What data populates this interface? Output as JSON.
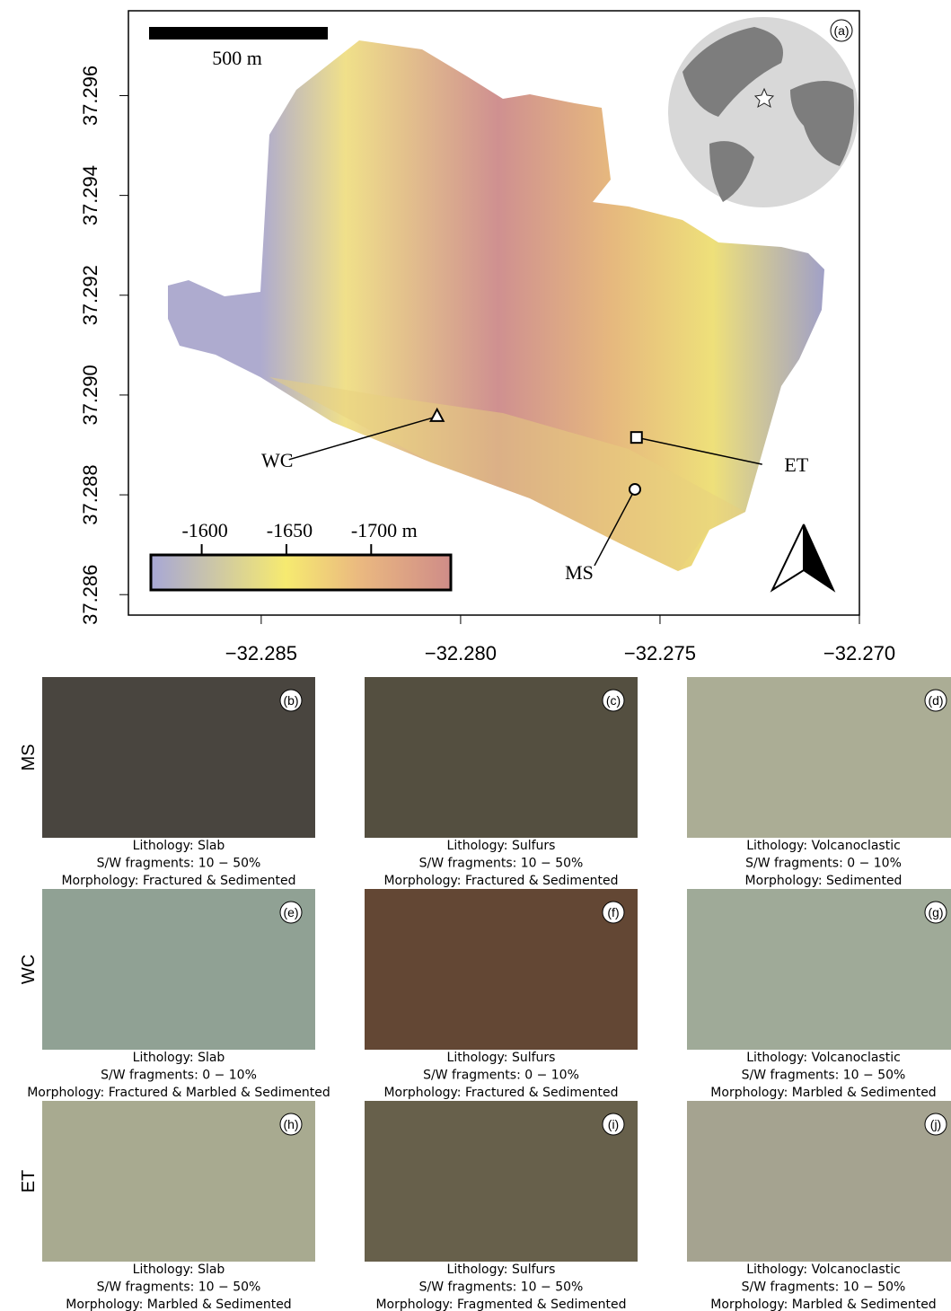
{
  "map": {
    "panel": "(a)",
    "scale_bar": "500 m",
    "xlim": [
      -32.28833,
      -32.27
    ],
    "ylim": [
      37.28559,
      37.2977
    ],
    "xticks": [
      {
        "value": -32.285,
        "label": "−32.285"
      },
      {
        "value": -32.28,
        "label": "−32.280"
      },
      {
        "value": -32.275,
        "label": "−32.275"
      },
      {
        "value": -32.27,
        "label": "−32.270"
      }
    ],
    "yticks": [
      37.286,
      37.288,
      {
        "value": 37.29,
        "label": "37.290"
      },
      37.292,
      37.294,
      37.296
    ],
    "colorbar": {
      "lim": [
        -1570,
        -1747
      ],
      "ticks": [
        -1600,
        -1650,
        {
          "value": -1700,
          "label": "-1700 m"
        }
      ]
    },
    "sites": [
      {
        "name": "WC",
        "lon": -32.28059,
        "lat": 37.28957,
        "marker": "triangle"
      },
      {
        "name": "ET",
        "lon": -32.27559,
        "lat": 37.28915,
        "marker": "square"
      },
      {
        "name": "MS",
        "lon": -32.27563,
        "lat": 37.28811,
        "marker": "circle"
      }
    ]
  },
  "photos": {
    "rows": [
      "MS",
      "WC",
      "ET"
    ],
    "panels": [
      [
        {
          "label": "(b)",
          "color": "#3e3a33",
          "lines": [
            "Lithology: Slab",
            "S/W fragments: 10 − 50%",
            "Morphology: Fractured & Sedimented"
          ]
        },
        {
          "label": "(c)",
          "color": "#4a4535",
          "lines": [
            "Lithology: Sulfurs",
            "S/W fragments: 10 − 50%",
            "Morphology: Fractured & Sedimented"
          ]
        },
        {
          "label": "(d)",
          "color": "#a6a88f",
          "lines": [
            "Lithology: Volcanoclastic",
            "S/W fragments: 0 − 10%",
            "Morphology: Sedimented"
          ]
        }
      ],
      [
        {
          "label": "(e)",
          "color": "#8a9c8e",
          "lines": [
            "Lithology: Slab",
            "S/W fragments: 0 − 10%",
            "Morphology: Fractured & Marbled & Sedimented"
          ]
        },
        {
          "label": "(f)",
          "color": "#5a3c28",
          "lines": [
            "Lithology: Sulfurs",
            "S/W fragments: 0 − 10%",
            "Morphology: Fractured & Sedimented"
          ]
        },
        {
          "label": "(g)",
          "color": "#9aa592",
          "lines": [
            "Lithology: Volcanoclastic",
            "S/W fragments: 10 − 50%",
            "Morphology: Marbled & Sedimented"
          ]
        }
      ],
      [
        {
          "label": "(h)",
          "color": "#a3a58a",
          "lines": [
            "Lithology: Slab",
            "S/W fragments: 10 − 50%",
            "Morphology: Marbled & Sedimented"
          ]
        },
        {
          "label": "(i)",
          "color": "#5e5740",
          "lines": [
            "Lithology: Sulfurs",
            "S/W fragments: 10 − 50%",
            "Morphology: Fragmented & Sedimented"
          ]
        },
        {
          "label": "(j)",
          "color": "#a09e8a",
          "lines": [
            "Lithology: Volcanoclastic",
            "S/W fragments: 10 − 50%",
            "Morphology: Marbled & Sedimented"
          ]
        }
      ]
    ]
  }
}
